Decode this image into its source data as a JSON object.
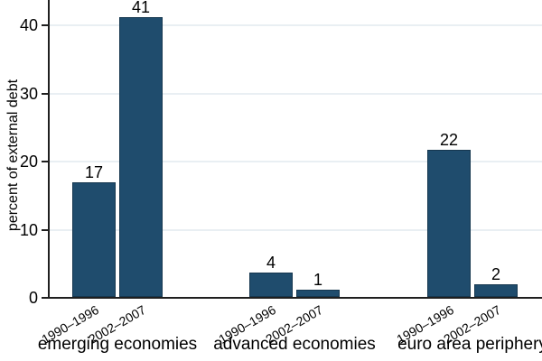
{
  "chart_data": {
    "type": "bar",
    "title": "",
    "xlabel": "",
    "ylabel": "percent of external debt",
    "ylim": [
      0,
      43.7
    ],
    "yticks": [
      0,
      10,
      20,
      30,
      40
    ],
    "grid": "horizontal",
    "legend_position": "none",
    "categories": [
      "emerging economies",
      "advanced economies",
      "euro area periphery"
    ],
    "series_periods": [
      "1990–1996",
      "2002–2007"
    ],
    "groups": [
      {
        "label": "emerging economies",
        "bars": [
          {
            "period": "1990–1996",
            "value": 16.8,
            "display_label": "17"
          },
          {
            "period": "2002–2007",
            "value": 41.0,
            "display_label": "41"
          }
        ]
      },
      {
        "label": "advanced economies",
        "bars": [
          {
            "period": "1990–1996",
            "value": 3.6,
            "display_label": "4"
          },
          {
            "period": "2002–2007",
            "value": 1.1,
            "display_label": "1"
          }
        ]
      },
      {
        "label": "euro area periphery",
        "bars": [
          {
            "period": "1990–1996",
            "value": 21.6,
            "display_label": "22"
          },
          {
            "period": "2002–2007",
            "value": 1.8,
            "display_label": "2"
          }
        ]
      }
    ],
    "colors": {
      "bar_fill": "#1f4c6d",
      "bar_border": "#16374f",
      "gridline": "#e9eff3",
      "axis": "#1f1f1f",
      "text": "#000000",
      "background": "#ffffff"
    }
  }
}
